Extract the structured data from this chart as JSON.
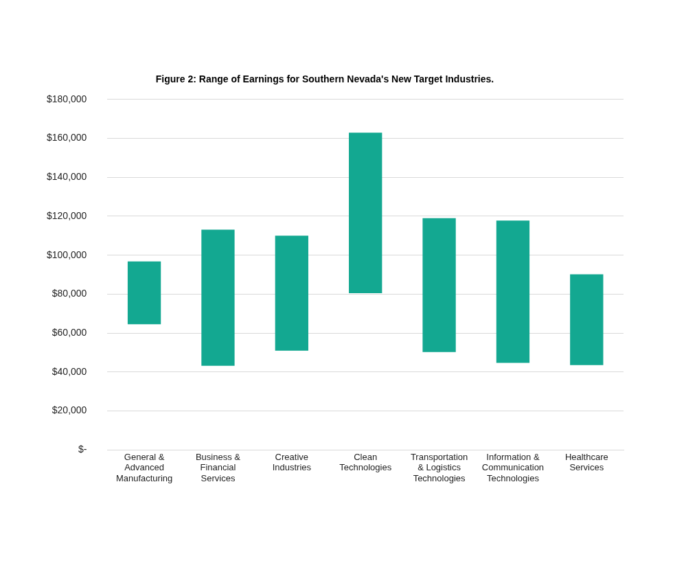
{
  "chart_data": {
    "type": "bar",
    "title": "Figure 2: Range of Earnings for Southern Nevada's New Target Industries.",
    "categories": [
      "General & Advanced Manufacturing",
      "Business & Financial Services",
      "Creative Industries",
      "Clean Technologies",
      "Transportation & Logistics Technologies",
      "Information & Communication Technologies",
      "Healthcare Services"
    ],
    "base": [
      64500,
      43200,
      50900,
      80500,
      50200,
      44700,
      43500
    ],
    "values": [
      32300,
      69900,
      59100,
      82400,
      68800,
      73100,
      46700
    ],
    "color": "#13a891",
    "ylim": [
      0,
      180000
    ],
    "yticks": [
      {
        "value": 0,
        "label": "$-"
      },
      {
        "value": 20000,
        "label": "$20,000"
      },
      {
        "value": 40000,
        "label": "$40,000"
      },
      {
        "value": 60000,
        "label": "$60,000"
      },
      {
        "value": 80000,
        "label": "$80,000"
      },
      {
        "value": 100000,
        "label": "$100,000"
      },
      {
        "value": 120000,
        "label": "$120,000"
      },
      {
        "value": 140000,
        "label": "$140,000"
      },
      {
        "value": 160000,
        "label": "$160,000"
      },
      {
        "value": 180000,
        "label": "$180,000"
      }
    ],
    "grid": "y",
    "legend": false
  }
}
